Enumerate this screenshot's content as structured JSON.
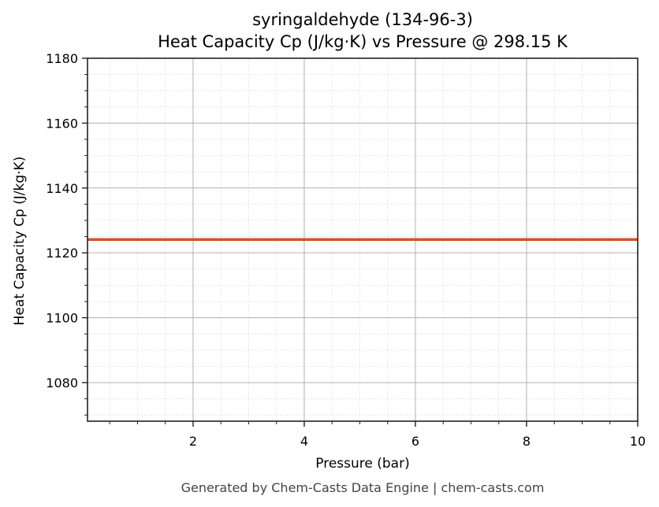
{
  "chart_data": {
    "type": "line",
    "title": "syringaldehyde (134-96-3)",
    "subtitle": "Heat Capacity Cp (J/kg·K) vs Pressure @ 298.15 K",
    "xlabel": "Pressure (bar)",
    "ylabel": "Heat Capacity Cp (J/kg·K)",
    "xlim": [
      0.1,
      10
    ],
    "ylim": [
      1068.1,
      1180
    ],
    "x_ticks": [
      2,
      4,
      6,
      8,
      10
    ],
    "y_ticks": [
      1080,
      1100,
      1120,
      1140,
      1160,
      1180
    ],
    "grid": true,
    "minor_grid": true,
    "legend": null,
    "series": [
      {
        "name": "Cp",
        "color": "#d2542a",
        "x": [
          0.1,
          1,
          2,
          3,
          4,
          5,
          6,
          7,
          8,
          9,
          10
        ],
        "values": [
          1124.1,
          1124.1,
          1124.1,
          1124.1,
          1124.1,
          1124.1,
          1124.1,
          1124.1,
          1124.1,
          1124.1,
          1124.1
        ]
      }
    ]
  },
  "header": {
    "title": "syringaldehyde (134-96-3)",
    "subtitle": "Heat Capacity Cp (J/kg·K) vs Pressure @ 298.15 K"
  },
  "axes": {
    "xlabel": "Pressure (bar)",
    "ylabel": "Heat Capacity Cp (J/kg·K)",
    "x_tick_labels": [
      "2",
      "4",
      "6",
      "8",
      "10"
    ],
    "y_tick_labels": [
      "1080",
      "1100",
      "1120",
      "1140",
      "1160",
      "1180"
    ]
  },
  "footer": {
    "text": "Generated by Chem-Casts Data Engine | chem-casts.com"
  },
  "colors": {
    "line": "#d2542a",
    "major_grid": "#b0b0b0",
    "minor_grid": "#e0e0e0",
    "axis": "#222222"
  }
}
